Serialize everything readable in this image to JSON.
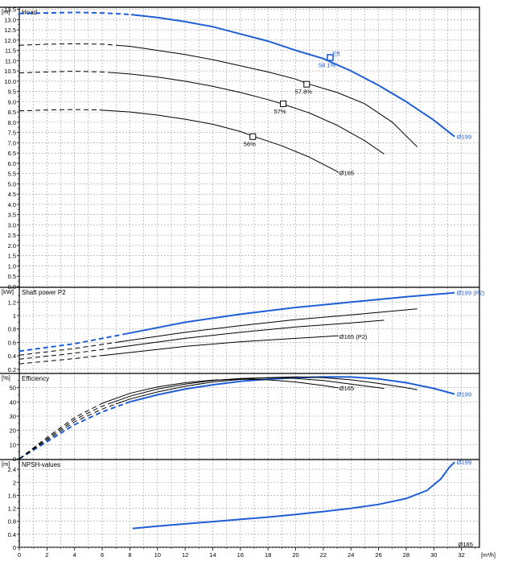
{
  "chart_data": [
    {
      "type": "line",
      "title": "Head",
      "unit_label": "[m]",
      "ylim": [
        0,
        13.6
      ],
      "ytick_step": 0.5,
      "xlim": [
        0,
        33.3
      ],
      "grid": true,
      "series": [
        {
          "name": "Ø199",
          "emphasis": true,
          "dashed_until": 8.1,
          "points": [
            [
              0,
              13.3
            ],
            [
              2,
              13.32
            ],
            [
              4,
              13.35
            ],
            [
              6,
              13.32
            ],
            [
              8,
              13.25
            ],
            [
              10,
              13.1
            ],
            [
              12,
              12.9
            ],
            [
              14,
              12.65
            ],
            [
              16,
              12.3
            ],
            [
              18,
              11.95
            ],
            [
              20,
              11.5
            ],
            [
              22,
              11.1
            ],
            [
              24,
              10.5
            ],
            [
              26,
              9.8
            ],
            [
              28,
              9.0
            ],
            [
              30,
              8.1
            ],
            [
              31.5,
              7.3
            ]
          ]
        },
        {
          "dashed_until": 7.3,
          "points": [
            [
              0,
              11.75
            ],
            [
              2,
              11.8
            ],
            [
              4,
              11.82
            ],
            [
              6,
              11.8
            ],
            [
              8,
              11.7
            ],
            [
              10,
              11.5
            ],
            [
              12,
              11.3
            ],
            [
              14,
              11.05
            ],
            [
              16,
              10.75
            ],
            [
              18,
              10.45
            ],
            [
              20,
              10.1
            ],
            [
              21,
              9.85
            ],
            [
              23,
              9.45
            ],
            [
              25,
              8.9
            ],
            [
              27,
              8.0
            ],
            [
              28.8,
              6.8
            ]
          ]
        },
        {
          "dashed_until": 6.6,
          "points": [
            [
              0,
              10.4
            ],
            [
              2,
              10.45
            ],
            [
              4,
              10.48
            ],
            [
              6,
              10.45
            ],
            [
              8,
              10.35
            ],
            [
              10,
              10.2
            ],
            [
              12,
              10.0
            ],
            [
              14,
              9.75
            ],
            [
              16,
              9.45
            ],
            [
              18,
              9.1
            ],
            [
              19,
              8.9
            ],
            [
              21,
              8.45
            ],
            [
              23,
              7.85
            ],
            [
              25,
              7.1
            ],
            [
              26.4,
              6.45
            ]
          ]
        },
        {
          "dashed_until": 5.8,
          "points": [
            [
              0,
              8.55
            ],
            [
              2,
              8.6
            ],
            [
              4,
              8.62
            ],
            [
              5.8,
              8.6
            ],
            [
              8,
              8.5
            ],
            [
              10,
              8.35
            ],
            [
              12,
              8.15
            ],
            [
              14,
              7.9
            ],
            [
              16,
              7.55
            ],
            [
              17,
              7.3
            ],
            [
              19,
              6.85
            ],
            [
              21,
              6.3
            ],
            [
              23,
              5.6
            ],
            [
              23.1,
              5.55
            ]
          ]
        }
      ],
      "markers": [
        {
          "x": 22.5,
          "y": 11.15,
          "label": "58.1%",
          "emphasis": true
        },
        {
          "x": 20.8,
          "y": 9.85,
          "label": "57.8%"
        },
        {
          "x": 19.1,
          "y": 8.9,
          "label": "57%"
        },
        {
          "x": 16.9,
          "y": 7.3,
          "label": "56%"
        }
      ],
      "annotations": [
        {
          "text": "Eff.",
          "x": 22.6,
          "y": 11.35,
          "emphasis": true
        },
        {
          "text": "Ø199",
          "x": 31.6,
          "y": 7.3,
          "emphasis": true
        },
        {
          "text": "Ø165",
          "x": 23.1,
          "y": 5.55
        }
      ]
    },
    {
      "type": "line",
      "title": "Shaft power P2",
      "unit_label": "[kW]",
      "ylim": [
        0.15,
        1.42
      ],
      "yticks": [
        0.2,
        0.4,
        0.6,
        0.8,
        1.0,
        1.2
      ],
      "xlim": [
        0,
        33.3
      ],
      "grid": true,
      "series": [
        {
          "name": "Ø199 (P2)",
          "emphasis": true,
          "dashed_until": 7.7,
          "points": [
            [
              0,
              0.47
            ],
            [
              4,
              0.58
            ],
            [
              8,
              0.74
            ],
            [
              12,
              0.9
            ],
            [
              16,
              1.02
            ],
            [
              20,
              1.12
            ],
            [
              24,
              1.2
            ],
            [
              28,
              1.28
            ],
            [
              31.5,
              1.34
            ]
          ]
        },
        {
          "dashed_until": 7.0,
          "points": [
            [
              0,
              0.41
            ],
            [
              4,
              0.51
            ],
            [
              8,
              0.63
            ],
            [
              12,
              0.75
            ],
            [
              16,
              0.85
            ],
            [
              20,
              0.94
            ],
            [
              24,
              1.01
            ],
            [
              28.8,
              1.1
            ]
          ]
        },
        {
          "dashed_until": 6.4,
          "points": [
            [
              0,
              0.35
            ],
            [
              4,
              0.44
            ],
            [
              8,
              0.55
            ],
            [
              12,
              0.66
            ],
            [
              16,
              0.75
            ],
            [
              20,
              0.83
            ],
            [
              24,
              0.89
            ],
            [
              26.4,
              0.93
            ]
          ]
        },
        {
          "dashed_until": 5.8,
          "points": [
            [
              0,
              0.28
            ],
            [
              4,
              0.36
            ],
            [
              8,
              0.45
            ],
            [
              12,
              0.54
            ],
            [
              16,
              0.61
            ],
            [
              20,
              0.66
            ],
            [
              23.1,
              0.7
            ]
          ]
        }
      ],
      "annotations": [
        {
          "text": "Ø199 (P2)",
          "x": 31.6,
          "y": 1.34,
          "emphasis": true
        },
        {
          "text": "Ø165 (P2)",
          "x": 23.1,
          "y": 0.69
        }
      ]
    },
    {
      "type": "line",
      "title": "Efficiency",
      "unit_label": "[%]",
      "ylim": [
        0,
        60
      ],
      "yticks": [
        0,
        10,
        20,
        30,
        40,
        50
      ],
      "xlim": [
        0,
        33.3
      ],
      "grid": true,
      "series": [
        {
          "name": "Ø199",
          "emphasis": true,
          "dashed_until": 7.7,
          "points": [
            [
              0,
              0
            ],
            [
              2,
              12
            ],
            [
              4,
              24
            ],
            [
              6,
              33
            ],
            [
              8,
              40
            ],
            [
              10,
              45
            ],
            [
              12,
              49
            ],
            [
              14,
              52
            ],
            [
              16,
              54.5
            ],
            [
              18,
              56
            ],
            [
              20,
              57
            ],
            [
              22,
              57.6
            ],
            [
              24,
              57.5
            ],
            [
              26,
              56.2
            ],
            [
              28,
              53.5
            ],
            [
              30,
              49.5
            ],
            [
              31.5,
              45.5
            ]
          ]
        },
        {
          "dashed_until": 7.0,
          "points": [
            [
              0,
              0
            ],
            [
              2,
              13
            ],
            [
              4,
              26
            ],
            [
              6,
              35
            ],
            [
              8,
              42
            ],
            [
              10,
              47
            ],
            [
              12,
              51
            ],
            [
              14,
              54
            ],
            [
              16,
              55.8
            ],
            [
              18,
              57
            ],
            [
              20,
              57.6
            ],
            [
              22,
              57
            ],
            [
              24,
              55.5
            ],
            [
              26,
              53
            ],
            [
              28,
              50
            ],
            [
              28.8,
              48.5
            ]
          ]
        },
        {
          "dashed_until": 6.4,
          "points": [
            [
              0,
              0
            ],
            [
              2,
              14
            ],
            [
              4,
              27.5
            ],
            [
              6,
              37
            ],
            [
              8,
              44
            ],
            [
              10,
              49
            ],
            [
              12,
              52.5
            ],
            [
              14,
              55
            ],
            [
              16,
              56.5
            ],
            [
              18,
              57
            ],
            [
              20,
              56.5
            ],
            [
              22,
              55
            ],
            [
              24,
              52.5
            ],
            [
              26.4,
              49.5
            ]
          ]
        },
        {
          "dashed_until": 5.8,
          "points": [
            [
              0,
              0
            ],
            [
              2,
              15
            ],
            [
              4,
              29
            ],
            [
              6,
              39
            ],
            [
              8,
              46
            ],
            [
              10,
              50.5
            ],
            [
              12,
              53.5
            ],
            [
              14,
              55.3
            ],
            [
              16,
              56
            ],
            [
              18,
              55.5
            ],
            [
              20,
              54
            ],
            [
              22,
              51.5
            ],
            [
              23.1,
              49.8
            ]
          ]
        }
      ],
      "annotations": [
        {
          "text": "Ø199",
          "x": 31.6,
          "y": 45.5,
          "emphasis": true
        },
        {
          "text": "Ø165",
          "x": 23.1,
          "y": 49.8
        }
      ]
    },
    {
      "type": "line",
      "title": "NPSH-values",
      "unit_label": "[m]",
      "ylim": [
        0,
        2.7
      ],
      "yticks": [
        0,
        0.4,
        0.8,
        1.2,
        1.6,
        2.0,
        2.4
      ],
      "ytick_labels": [
        "0",
        "0.4",
        "0.8",
        "1.2",
        "1.6",
        "2",
        "2.4"
      ],
      "xlim": [
        0,
        33.3
      ],
      "xticks": [
        0,
        2,
        4,
        6,
        8,
        10,
        12,
        14,
        16,
        18,
        20,
        22,
        24,
        26,
        28,
        30,
        32
      ],
      "xunit": "[m³/h]",
      "grid": true,
      "series": [
        {
          "name": "Ø199",
          "emphasis": true,
          "points": [
            [
              8.2,
              0.58
            ],
            [
              10,
              0.65
            ],
            [
              12,
              0.72
            ],
            [
              14,
              0.79
            ],
            [
              16,
              0.86
            ],
            [
              18,
              0.93
            ],
            [
              20,
              1.01
            ],
            [
              22,
              1.1
            ],
            [
              24,
              1.2
            ],
            [
              26,
              1.32
            ],
            [
              28,
              1.5
            ],
            [
              29.5,
              1.75
            ],
            [
              30.5,
              2.1
            ],
            [
              31.1,
              2.45
            ],
            [
              31.5,
              2.62
            ]
          ]
        }
      ],
      "annotations": [
        {
          "text": "Ø199",
          "x": 31.6,
          "y": 2.62,
          "emphasis": true
        },
        {
          "text": "Ø165",
          "x": 31.7,
          "y": 0.1
        }
      ]
    }
  ],
  "colors": {
    "emphasis": "#1f5fd6",
    "normal": "#000000",
    "grid": "#9a9a9a",
    "frame": "#000000"
  }
}
